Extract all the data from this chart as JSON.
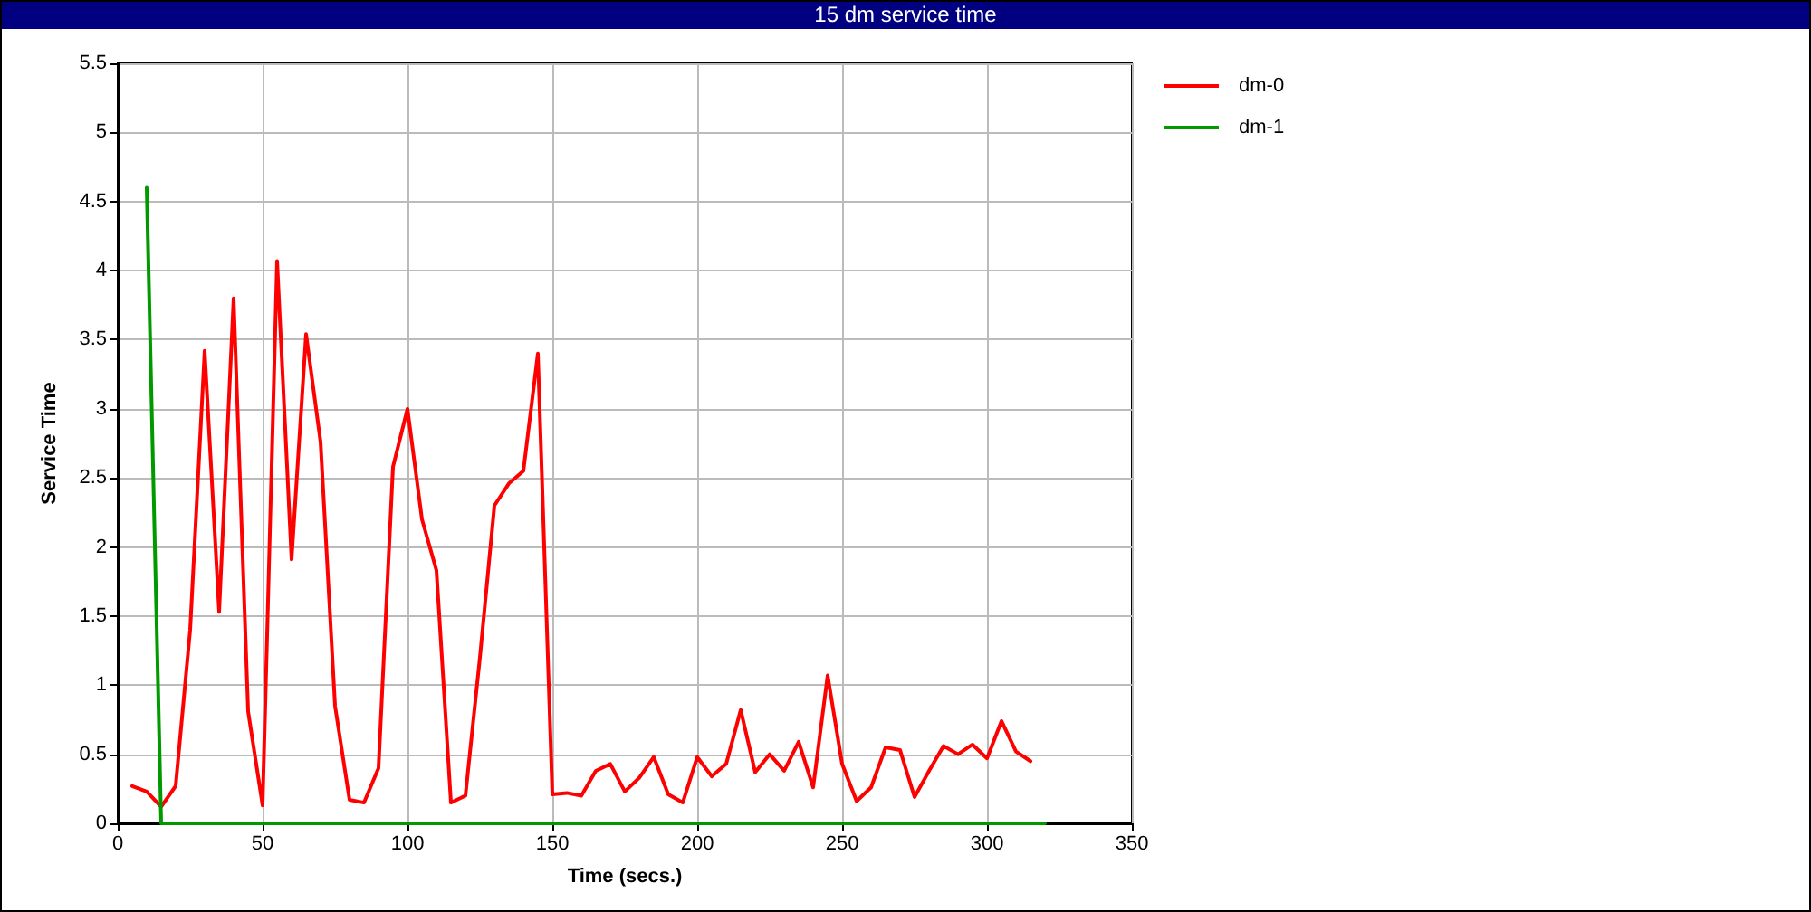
{
  "chart_data": {
    "type": "line",
    "title": "15 dm service time",
    "xlabel": "Time (secs.)",
    "ylabel": "Service Time",
    "xlim": [
      0,
      350
    ],
    "xticks": [
      0,
      50,
      100,
      150,
      200,
      250,
      300,
      350
    ],
    "ylim": [
      0,
      5.5
    ],
    "yticks": [
      0,
      0.5,
      1,
      1.5,
      2,
      2.5,
      3,
      3.5,
      4,
      4.5,
      5,
      5.5
    ],
    "grid": true,
    "legend": "top right",
    "marker": "none",
    "line_style": "solid",
    "series": [
      {
        "name": "dm-0",
        "color": "#ff0000",
        "x": [
          5,
          10,
          15,
          20,
          25,
          30,
          35,
          40,
          45,
          50,
          55,
          60,
          65,
          70,
          75,
          80,
          85,
          90,
          95,
          100,
          105,
          110,
          115,
          120,
          125,
          130,
          135,
          140,
          145,
          150,
          155,
          160,
          165,
          170,
          175,
          180,
          185,
          190,
          195,
          200,
          205,
          210,
          215,
          220,
          225,
          230,
          235,
          240,
          245,
          250,
          255,
          260,
          265,
          270,
          275,
          280,
          285,
          290,
          295,
          300,
          305,
          310,
          315
        ],
        "values": [
          0.27,
          0.23,
          0.12,
          0.27,
          1.4,
          3.42,
          1.53,
          3.8,
          0.81,
          0.13,
          4.07,
          1.91,
          3.54,
          2.76,
          0.85,
          0.17,
          0.15,
          0.4,
          2.58,
          3.0,
          2.2,
          1.83,
          0.15,
          0.2,
          1.2,
          2.3,
          2.46,
          2.55,
          3.4,
          0.21,
          0.22,
          0.2,
          0.38,
          0.43,
          0.23,
          0.33,
          0.48,
          0.21,
          0.15,
          0.48,
          0.34,
          0.43,
          0.82,
          0.37,
          0.5,
          0.38,
          0.59,
          0.26,
          1.07,
          0.43,
          0.16,
          0.26,
          0.55,
          0.53,
          0.19,
          0.38,
          0.56,
          0.5,
          0.57,
          0.47,
          0.74,
          0.52,
          0.45
        ]
      },
      {
        "name": "dm-1",
        "color": "#009900",
        "x": [
          10,
          15,
          320
        ],
        "values": [
          4.6,
          0,
          0
        ]
      }
    ]
  }
}
